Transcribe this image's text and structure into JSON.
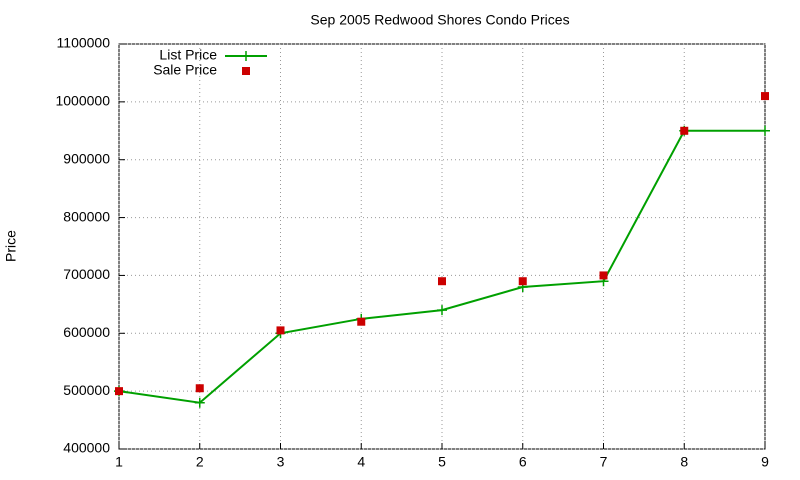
{
  "chart_data": {
    "type": "line",
    "title": "Sep 2005 Redwood Shores Condo Prices",
    "y_label": "Price",
    "x": [
      1,
      2,
      3,
      4,
      5,
      6,
      7,
      8,
      9
    ],
    "series": [
      {
        "name": "List Price",
        "color": "#00a000",
        "style": "line",
        "values": [
          500000,
          480000,
          600000,
          625000,
          640000,
          680000,
          690000,
          950000,
          950000
        ]
      },
      {
        "name": "Sale Price",
        "color": "#cc0000",
        "style": "points",
        "values": [
          500000,
          505000,
          605000,
          620000,
          690000,
          690000,
          700000,
          950000,
          1010000
        ]
      }
    ],
    "xlim": [
      1,
      9
    ],
    "xticks": [
      1,
      2,
      3,
      4,
      5,
      6,
      7,
      8,
      9
    ],
    "ylim": [
      400000,
      1100000
    ],
    "yticks": [
      400000,
      500000,
      600000,
      700000,
      800000,
      900000,
      1000000,
      1100000
    ],
    "grid": true,
    "legend": "top-left"
  }
}
